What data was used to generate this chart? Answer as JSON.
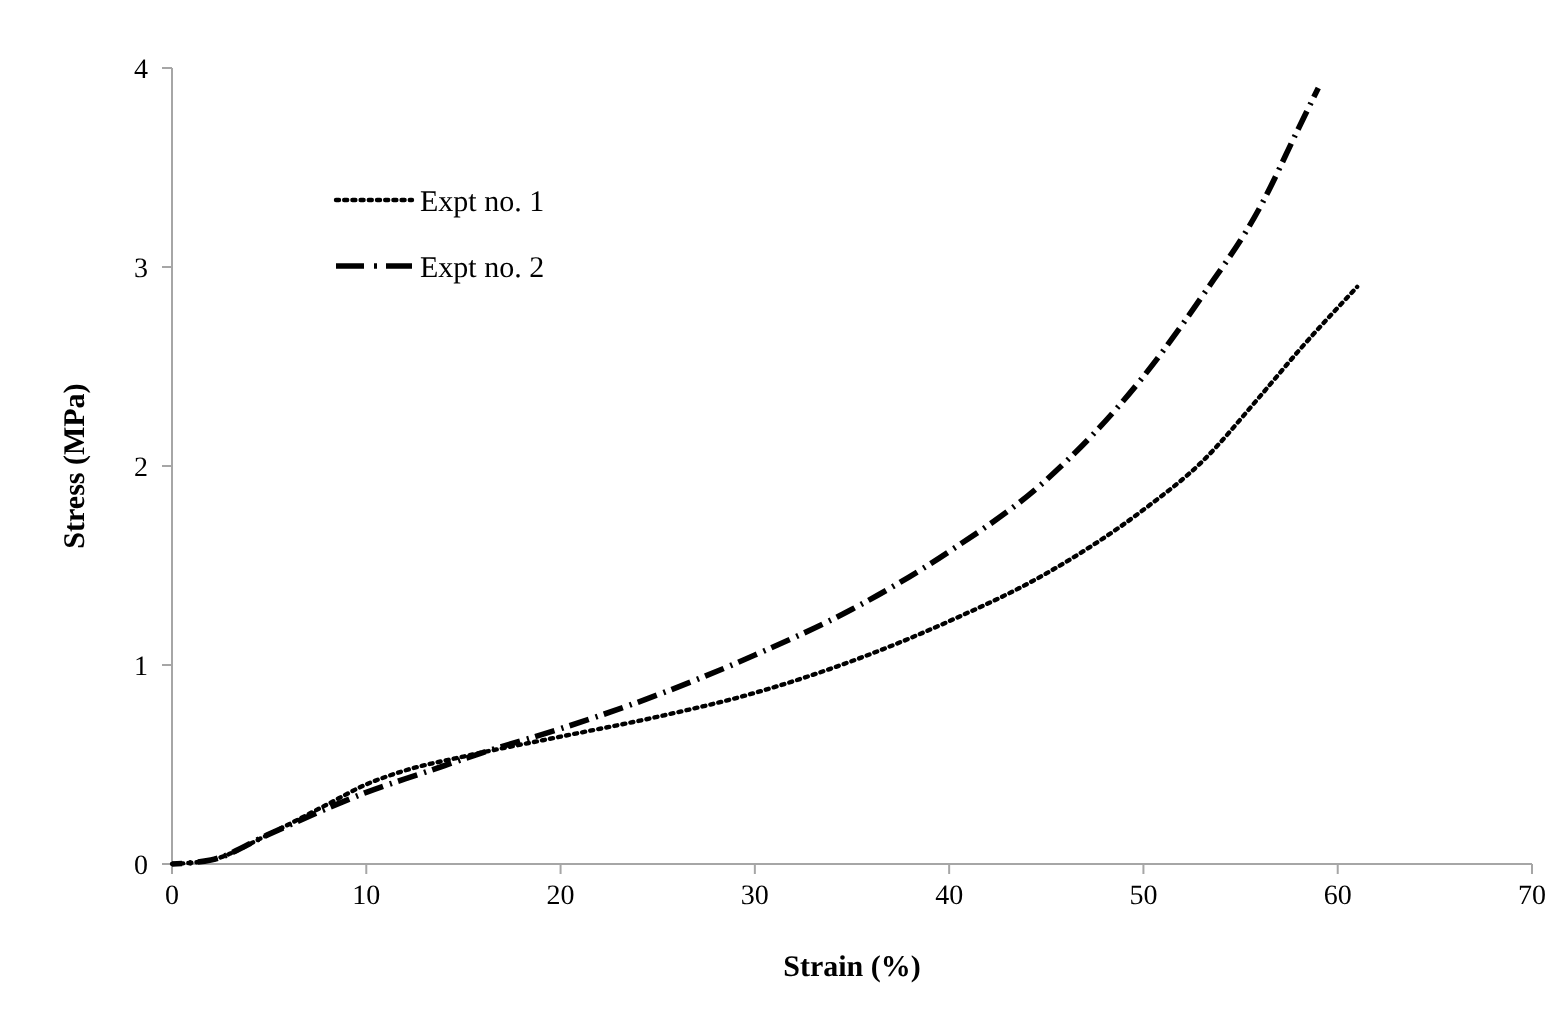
{
  "chart_data": {
    "type": "line",
    "xlabel": "Strain (%)",
    "ylabel": "Stress (MPa)",
    "xlim": [
      0,
      70
    ],
    "xticks": [
      0,
      10,
      20,
      30,
      40,
      50,
      60,
      70
    ],
    "ylim": [
      0,
      4
    ],
    "yticks": [
      0,
      1,
      2,
      3,
      4
    ],
    "grid": false,
    "legend": "top left",
    "series": [
      {
        "name": "Expt no. 1",
        "color": "#000000",
        "line_style": "dotted",
        "x": [
          0,
          2,
          5,
          8,
          10,
          12,
          15,
          20,
          25,
          30,
          35,
          40,
          45,
          50,
          53,
          56,
          58,
          61
        ],
        "values": [
          0,
          0.02,
          0.15,
          0.3,
          0.4,
          0.47,
          0.54,
          0.64,
          0.74,
          0.86,
          1.02,
          1.22,
          1.46,
          1.78,
          2.02,
          2.35,
          2.58,
          2.9
        ]
      },
      {
        "name": "Expt no. 2",
        "color": "#000000",
        "line_style": "dashdot",
        "x": [
          0,
          2,
          5,
          8,
          10,
          13,
          16,
          20,
          25,
          30,
          35,
          40,
          45,
          50,
          53,
          56,
          58,
          59
        ],
        "values": [
          0,
          0.02,
          0.15,
          0.28,
          0.36,
          0.46,
          0.56,
          0.68,
          0.85,
          1.05,
          1.28,
          1.57,
          1.93,
          2.45,
          2.85,
          3.3,
          3.7,
          3.9
        ]
      }
    ]
  }
}
